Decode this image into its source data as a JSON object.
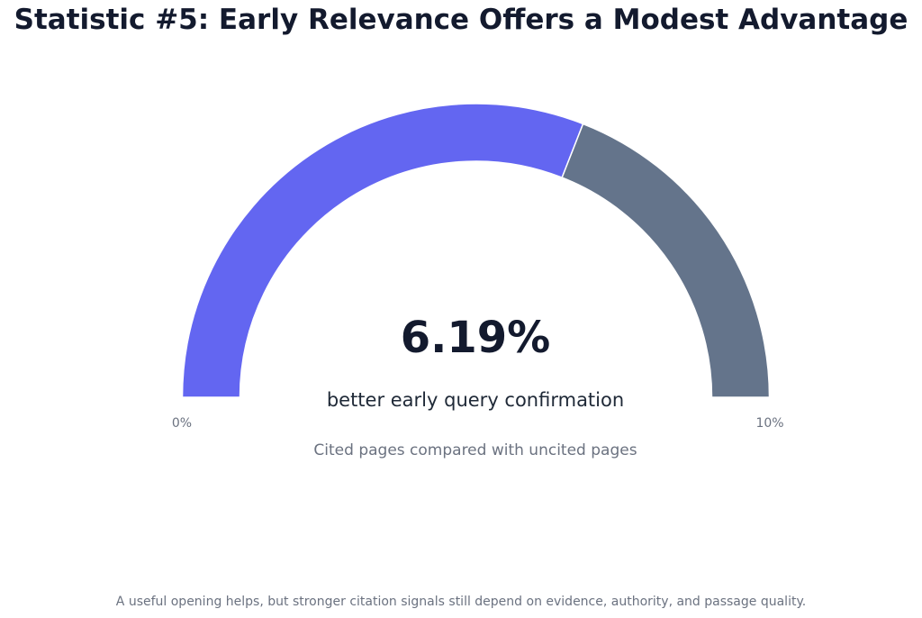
{
  "title": "Statistic #5: Early Relevance Offers a Modest Advantage",
  "footer": "A useful opening helps, but stronger citation signals still depend on evidence, authority, and passage quality.",
  "colors": {
    "value": "#6366f1",
    "remainder": "#64748b",
    "title": "#131a2e",
    "muted": "#6b7280"
  },
  "chart_data": {
    "type": "gauge",
    "value": 6.19,
    "min": 0,
    "max": 10,
    "value_label": "6.19%",
    "caption": "better early query confirmation",
    "subtitle": "Cited pages compared with uncited pages",
    "min_label": "0%",
    "max_label": "10%"
  }
}
